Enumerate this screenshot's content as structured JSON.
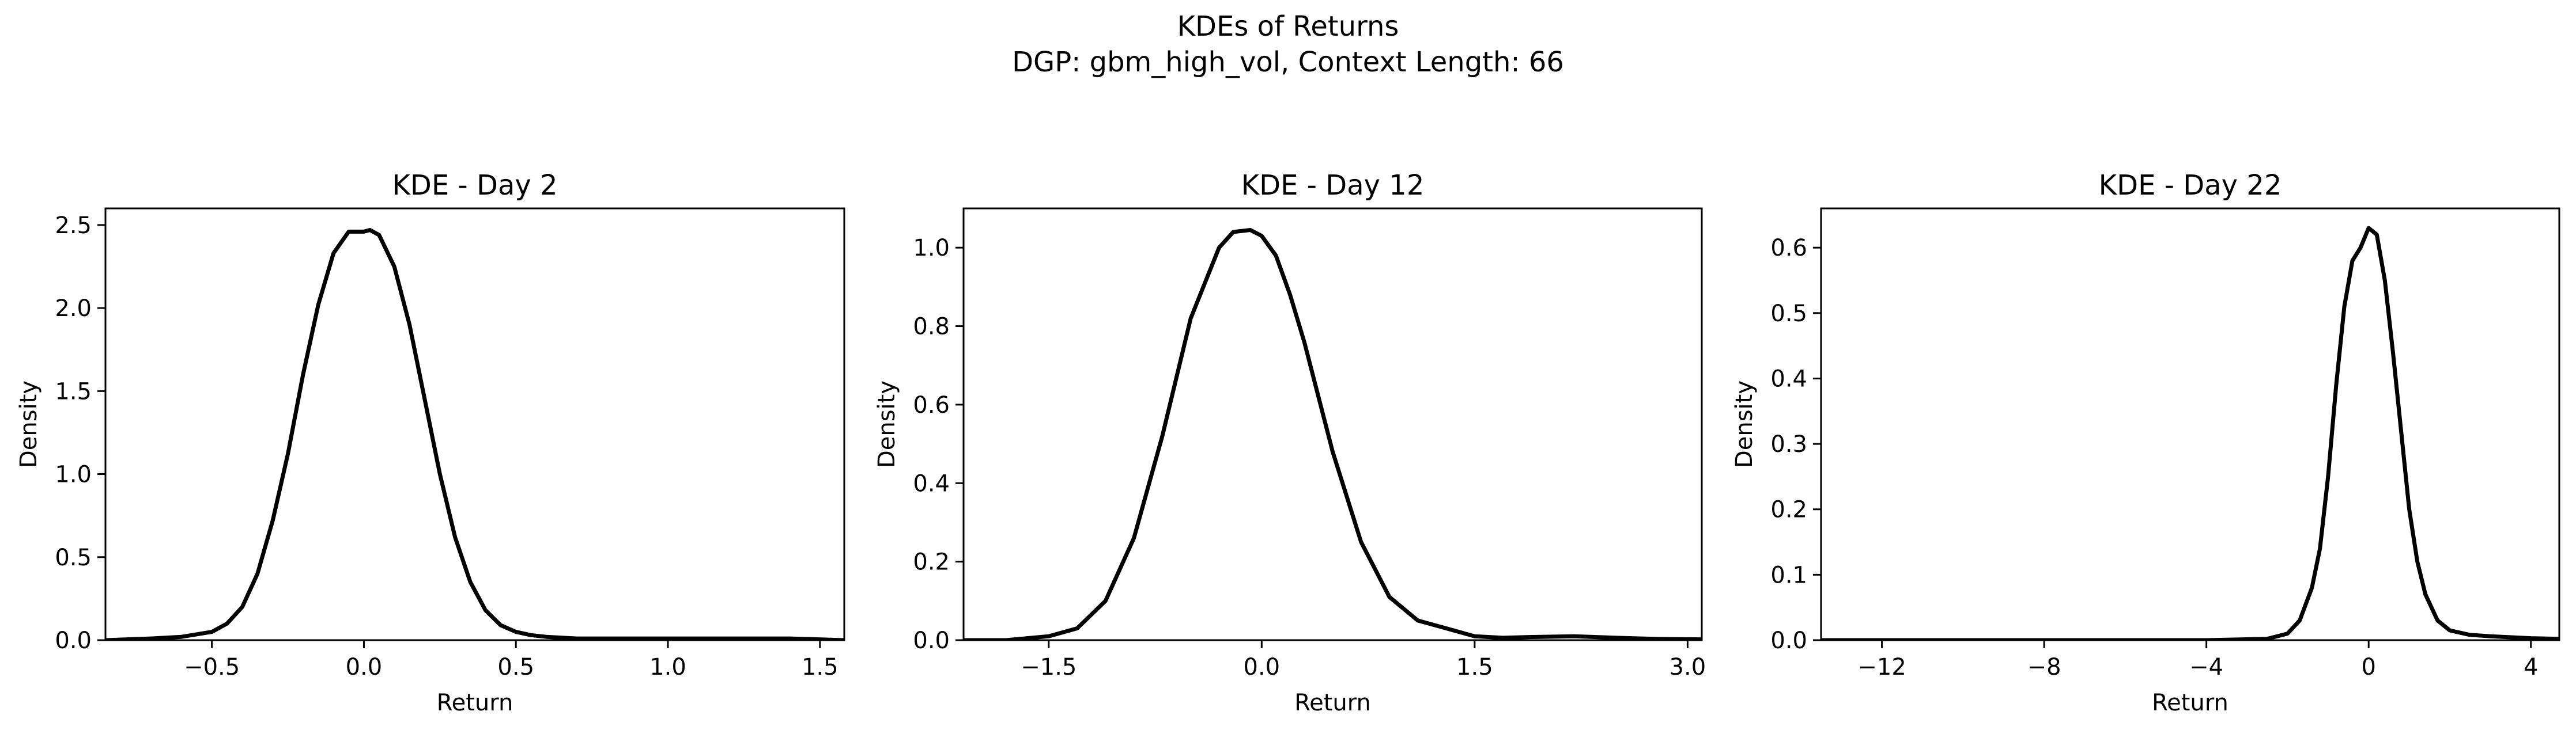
{
  "figure": {
    "suptitle_line1": "KDEs of Returns",
    "suptitle_line2": "DGP: gbm_high_vol, Context Length: 66"
  },
  "chart_data": [
    {
      "type": "line",
      "title": "KDE - Day 2",
      "xlabel": "Return",
      "ylabel": "Density",
      "xlim": [
        -0.85,
        1.58
      ],
      "ylim": [
        0,
        2.6
      ],
      "xticks": [
        -0.5,
        0.0,
        0.5,
        1.0,
        1.5
      ],
      "xtick_labels": [
        "−0.5",
        "0.0",
        "0.5",
        "1.0",
        "1.5"
      ],
      "yticks": [
        0.0,
        0.5,
        1.0,
        1.5,
        2.0,
        2.5
      ],
      "ytick_labels": [
        "0.0",
        "0.5",
        "1.0",
        "1.5",
        "2.0",
        "2.5"
      ],
      "grid": false,
      "series": [
        {
          "color": "#000000",
          "x": [
            -0.85,
            -0.7,
            -0.6,
            -0.5,
            -0.45,
            -0.4,
            -0.35,
            -0.3,
            -0.25,
            -0.2,
            -0.15,
            -0.1,
            -0.05,
            0.0,
            0.02,
            0.05,
            0.1,
            0.15,
            0.2,
            0.25,
            0.3,
            0.35,
            0.4,
            0.45,
            0.5,
            0.55,
            0.6,
            0.7,
            0.8,
            1.0,
            1.2,
            1.4,
            1.58
          ],
          "y": [
            0.0,
            0.01,
            0.02,
            0.05,
            0.1,
            0.2,
            0.4,
            0.72,
            1.12,
            1.6,
            2.02,
            2.33,
            2.46,
            2.46,
            2.47,
            2.44,
            2.25,
            1.9,
            1.45,
            1.0,
            0.62,
            0.35,
            0.18,
            0.09,
            0.05,
            0.03,
            0.02,
            0.01,
            0.01,
            0.01,
            0.01,
            0.01,
            0.0
          ]
        }
      ]
    },
    {
      "type": "line",
      "title": "KDE - Day 12",
      "xlabel": "Return",
      "ylabel": "Density",
      "xlim": [
        -2.1,
        3.1
      ],
      "ylim": [
        0,
        1.1
      ],
      "xticks": [
        -1.5,
        0.0,
        1.5,
        3.0
      ],
      "xtick_labels": [
        "−1.5",
        "0.0",
        "1.5",
        "3.0"
      ],
      "yticks": [
        0.0,
        0.2,
        0.4,
        0.6,
        0.8,
        1.0
      ],
      "ytick_labels": [
        "0.0",
        "0.2",
        "0.4",
        "0.6",
        "0.8",
        "1.0"
      ],
      "grid": false,
      "series": [
        {
          "color": "#000000",
          "x": [
            -2.1,
            -1.8,
            -1.5,
            -1.3,
            -1.1,
            -0.9,
            -0.7,
            -0.5,
            -0.3,
            -0.2,
            -0.08,
            0.0,
            0.1,
            0.2,
            0.3,
            0.5,
            0.7,
            0.9,
            1.1,
            1.3,
            1.5,
            1.7,
            1.9,
            2.2,
            2.5,
            2.8,
            3.1
          ],
          "y": [
            0.0,
            0.0,
            0.01,
            0.03,
            0.1,
            0.26,
            0.52,
            0.82,
            1.0,
            1.04,
            1.045,
            1.03,
            0.98,
            0.88,
            0.76,
            0.48,
            0.25,
            0.11,
            0.05,
            0.03,
            0.01,
            0.006,
            0.008,
            0.01,
            0.006,
            0.003,
            0.002
          ]
        }
      ]
    },
    {
      "type": "line",
      "title": "KDE - Day 22",
      "xlabel": "Return",
      "ylabel": "Density",
      "xlim": [
        -13.5,
        4.7
      ],
      "ylim": [
        0,
        0.66
      ],
      "xticks": [
        -12,
        -8,
        -4,
        0,
        4
      ],
      "xtick_labels": [
        "−12",
        "−8",
        "−4",
        "0",
        "4"
      ],
      "yticks": [
        0.0,
        0.1,
        0.2,
        0.3,
        0.4,
        0.5,
        0.6
      ],
      "ytick_labels": [
        "0.0",
        "0.1",
        "0.2",
        "0.3",
        "0.4",
        "0.5",
        "0.6"
      ],
      "grid": false,
      "series": [
        {
          "color": "#000000",
          "x": [
            -13.5,
            -12,
            -8,
            -4,
            -2.5,
            -2.0,
            -1.7,
            -1.4,
            -1.2,
            -1.0,
            -0.8,
            -0.6,
            -0.4,
            -0.2,
            0.0,
            0.2,
            0.4,
            0.6,
            0.8,
            1.0,
            1.2,
            1.4,
            1.7,
            2.0,
            2.5,
            3.0,
            4.0,
            4.7
          ],
          "y": [
            0.0,
            0.0,
            0.0,
            0.0,
            0.002,
            0.01,
            0.03,
            0.08,
            0.14,
            0.25,
            0.39,
            0.51,
            0.58,
            0.6,
            0.63,
            0.62,
            0.55,
            0.44,
            0.32,
            0.2,
            0.12,
            0.07,
            0.03,
            0.015,
            0.008,
            0.006,
            0.003,
            0.002
          ]
        }
      ]
    }
  ]
}
